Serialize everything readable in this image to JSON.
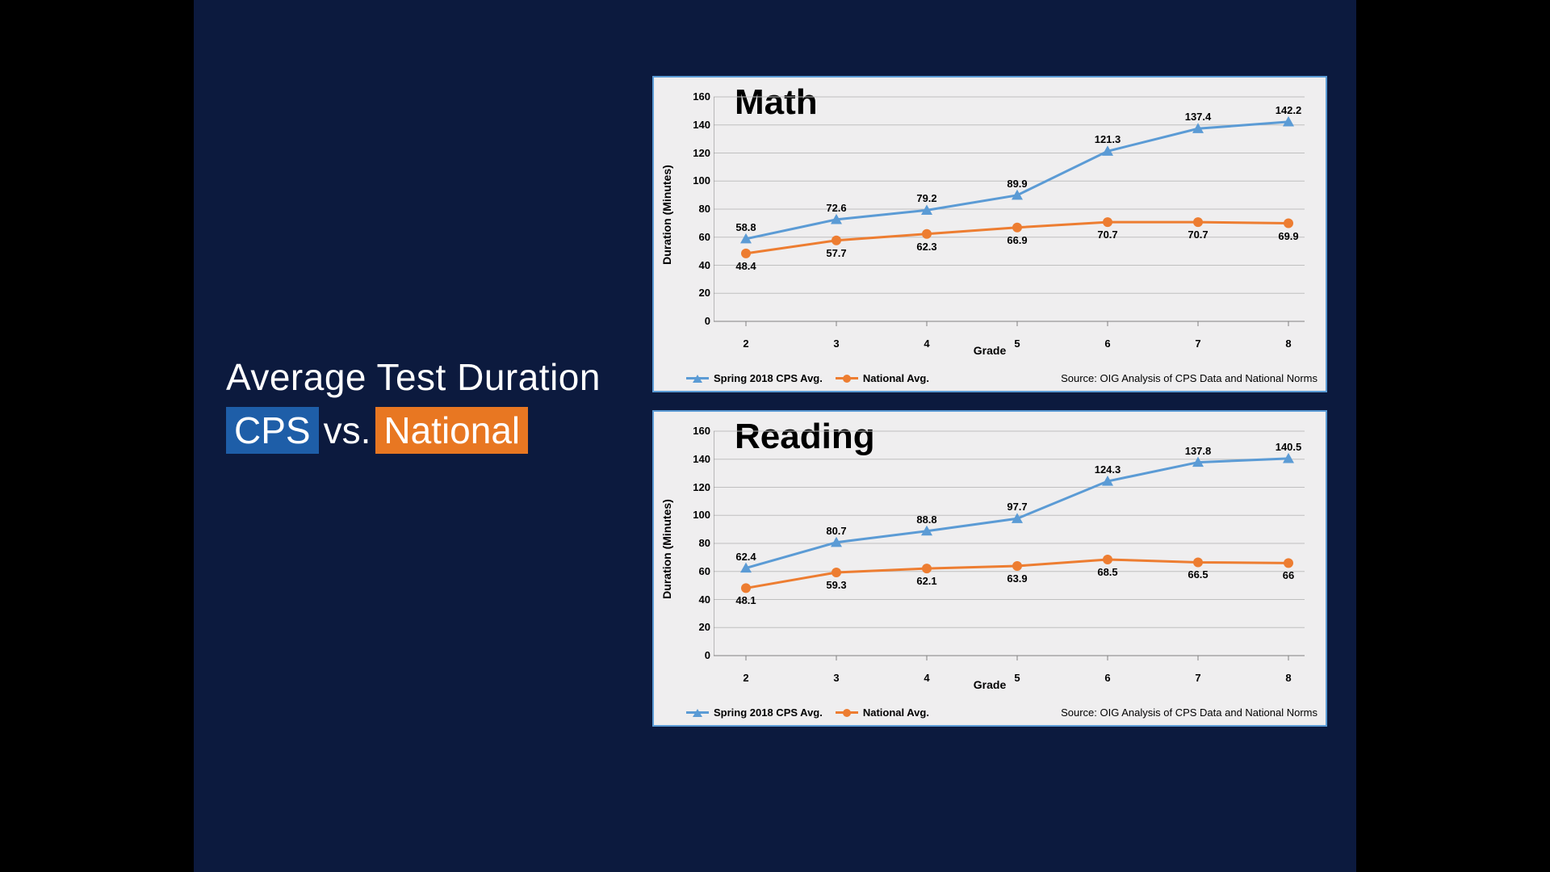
{
  "slide": {
    "background": "#0c1a3e",
    "outer_background": "#000000",
    "title_line1": "Average Test Duration",
    "cps_tag": "CPS",
    "cps_tag_bg": "#1e5ea8",
    "vs_text": "vs.",
    "national_tag": "National",
    "national_tag_bg": "#e87722",
    "title_color": "#ffffff",
    "title_fontsize": 46
  },
  "charts": {
    "common": {
      "panel_bg": "#efeeef",
      "panel_border": "#5b9bd5",
      "y_label": "Duration (Minutes)",
      "x_label": "Grade",
      "y_min": 0,
      "y_max": 160,
      "y_tick_step": 20,
      "y_ticks": [
        0,
        20,
        40,
        60,
        80,
        100,
        120,
        140,
        160
      ],
      "grades": [
        2,
        3,
        4,
        5,
        6,
        7,
        8
      ],
      "gridline_color": "#bfbfbf",
      "axis_color": "#808080",
      "tick_mark_color": "#808080",
      "series": {
        "cps": {
          "label": "Spring 2018 CPS Avg.",
          "color": "#5b9bd5",
          "line_width": 3,
          "marker": "triangle",
          "marker_size": 7
        },
        "national": {
          "label": "National Avg.",
          "color": "#ed7d31",
          "line_width": 3,
          "marker": "circle",
          "marker_size": 6
        }
      },
      "source": "Source: OIG Analysis of CPS Data and National Norms",
      "label_fontsize": 14,
      "tick_fontsize": 13,
      "title_fontsize": 44,
      "data_label_fontsize": 13
    },
    "math": {
      "title": "Math",
      "cps_values": [
        58.8,
        72.6,
        79.2,
        89.9,
        121.3,
        137.4,
        142.2
      ],
      "national_values": [
        48.4,
        57.7,
        62.3,
        66.9,
        70.7,
        70.7,
        69.9
      ]
    },
    "reading": {
      "title": "Reading",
      "cps_values": [
        62.4,
        80.7,
        88.8,
        97.7,
        124.3,
        137.8,
        140.5
      ],
      "national_values": [
        48.1,
        59.3,
        62.1,
        63.9,
        68.5,
        66.5,
        66
      ]
    }
  }
}
